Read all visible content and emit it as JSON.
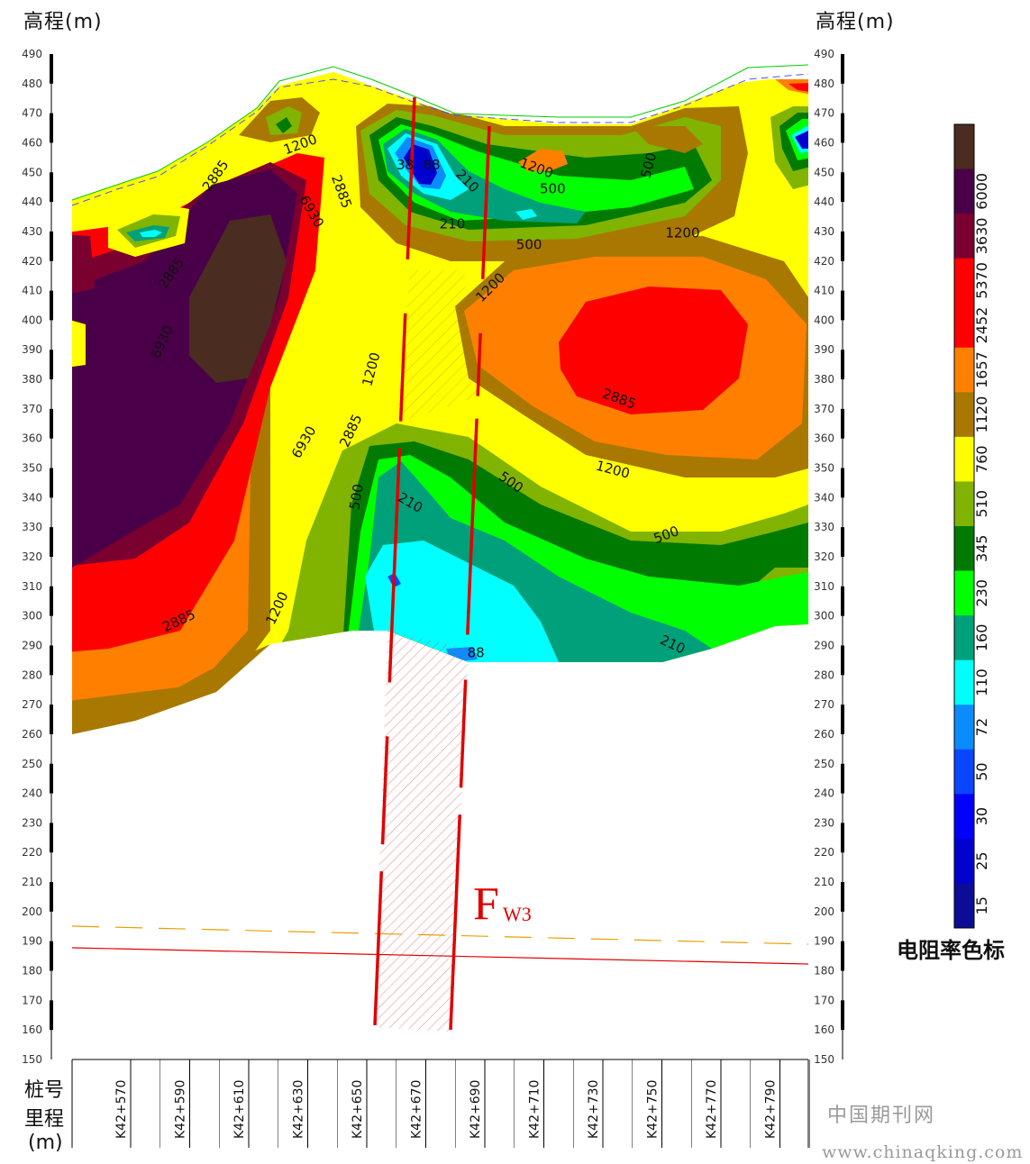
{
  "chart_data": {
    "type": "heatmap",
    "left_axis_title": "高程(m)",
    "right_axis_title": "高程(m)",
    "y_ticks": [
      490,
      480,
      470,
      460,
      450,
      440,
      430,
      420,
      410,
      400,
      390,
      380,
      370,
      360,
      350,
      340,
      330,
      320,
      310,
      300,
      290,
      280,
      270,
      260,
      250,
      240,
      230,
      220,
      210,
      200,
      190,
      180,
      170,
      160,
      150
    ],
    "ylim": [
      150,
      490
    ],
    "x_categories": [
      "K42+570",
      "K42+590",
      "K42+610",
      "K42+630",
      "K42+650",
      "K42+670",
      "K42+690",
      "K42+710",
      "K42+730",
      "K42+750",
      "K42+770",
      "K42+790"
    ],
    "xlim": [
      560,
      800
    ],
    "x_title_line1": "桩号",
    "x_title_line2": "里程",
    "x_title_line3": "(m)",
    "legend": {
      "title": "电阻率色标",
      "bins": [
        {
          "label": "15",
          "color": "#0c0c96"
        },
        {
          "label": "25",
          "color": "#0000cf"
        },
        {
          "label": "30",
          "color": "#0000ff"
        },
        {
          "label": "50",
          "color": "#0a46ff"
        },
        {
          "label": "72",
          "color": "#0a8cff"
        },
        {
          "label": "110",
          "color": "#00ffff"
        },
        {
          "label": "160",
          "color": "#00a07a"
        },
        {
          "label": "230",
          "color": "#00ff00"
        },
        {
          "label": "345",
          "color": "#007a00"
        },
        {
          "label": "510",
          "color": "#80b400"
        },
        {
          "label": "760",
          "color": "#ffff00"
        },
        {
          "label": "1120",
          "color": "#a87800"
        },
        {
          "label": "1657",
          "color": "#ff8000"
        },
        {
          "label": "2452",
          "color": "#ff0000"
        },
        {
          "label": "5370",
          "color": "#ff0000"
        },
        {
          "label": "3630",
          "color": "#7a0030"
        },
        {
          "label": "6000",
          "color": "#4a0048"
        },
        {
          "label": "",
          "color": "#4a2c20"
        }
      ]
    },
    "contour_labels": [
      {
        "text": "1200",
        "x": 628,
        "y": 458,
        "rot": -20
      },
      {
        "text": "2885",
        "x": 600,
        "y": 448,
        "rot": -55
      },
      {
        "text": "2885",
        "x": 585,
        "y": 415,
        "rot": -55
      },
      {
        "text": "6930",
        "x": 582,
        "y": 392,
        "rot": -65
      },
      {
        "text": "2885",
        "x": 640,
        "y": 443,
        "rot": 70
      },
      {
        "text": "6930",
        "x": 630,
        "y": 436,
        "rot": 60
      },
      {
        "text": "38",
        "x": 663,
        "y": 451,
        "rot": 0
      },
      {
        "text": "88",
        "x": 672,
        "y": 451,
        "rot": 0
      },
      {
        "text": "210",
        "x": 683,
        "y": 446,
        "rot": 45
      },
      {
        "text": "1200",
        "x": 707,
        "y": 450,
        "rot": 20
      },
      {
        "text": "500",
        "x": 713,
        "y": 443,
        "rot": 0
      },
      {
        "text": "500",
        "x": 747,
        "y": 452,
        "rot": -75
      },
      {
        "text": "210",
        "x": 679,
        "y": 431,
        "rot": 0
      },
      {
        "text": "500",
        "x": 705,
        "y": 424,
        "rot": 0
      },
      {
        "text": "1200",
        "x": 757,
        "y": 428,
        "rot": 0
      },
      {
        "text": "1200",
        "x": 693,
        "y": 410,
        "rot": -45
      },
      {
        "text": "1200",
        "x": 653,
        "y": 383,
        "rot": -75
      },
      {
        "text": "2885",
        "x": 735,
        "y": 372,
        "rot": 20
      },
      {
        "text": "2885",
        "x": 646,
        "y": 362,
        "rot": -65
      },
      {
        "text": "6930",
        "x": 630,
        "y": 358,
        "rot": -60
      },
      {
        "text": "1200",
        "x": 733,
        "y": 348,
        "rot": 15
      },
      {
        "text": "500",
        "x": 698,
        "y": 344,
        "rot": 35
      },
      {
        "text": "500",
        "x": 648,
        "y": 340,
        "rot": -80
      },
      {
        "text": "210",
        "x": 664,
        "y": 337,
        "rot": 30
      },
      {
        "text": "500",
        "x": 752,
        "y": 326,
        "rot": -20
      },
      {
        "text": "1200",
        "x": 621,
        "y": 302,
        "rot": -65
      },
      {
        "text": "2885",
        "x": 587,
        "y": 297,
        "rot": -25
      },
      {
        "text": "210",
        "x": 753,
        "y": 289,
        "rot": 25
      },
      {
        "text": "88",
        "x": 687,
        "y": 286,
        "rot": 0
      }
    ],
    "fault_label_main": "F",
    "fault_label_sub": "W3"
  },
  "watermark": {
    "line1": "中国期刊网",
    "line2": "www.chinaqking.com"
  }
}
